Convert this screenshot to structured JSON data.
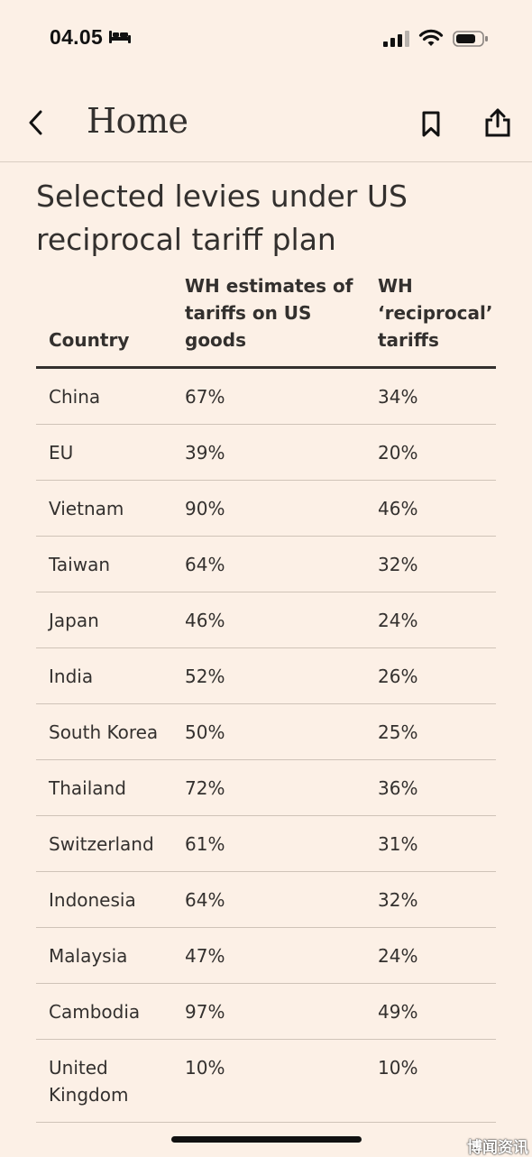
{
  "status_bar": {
    "time": "04.05",
    "icons": [
      "bed-icon",
      "cellular-signal-icon",
      "wifi-icon",
      "battery-icon"
    ]
  },
  "nav": {
    "title": "Home",
    "icons": [
      "back-chevron-icon",
      "bookmark-icon",
      "share-icon"
    ]
  },
  "article": {
    "headline": "Selected levies under US reciprocal tariff plan"
  },
  "table": {
    "headers": {
      "country": "Country",
      "wh_estimates": "WH estimates of tariffs on US goods",
      "reciprocal": "WH ‘reciprocal’ tariffs"
    },
    "rows": [
      {
        "country": "China",
        "wh_estimates": "67%",
        "reciprocal": "34%"
      },
      {
        "country": "EU",
        "wh_estimates": "39%",
        "reciprocal": "20%"
      },
      {
        "country": "Vietnam",
        "wh_estimates": "90%",
        "reciprocal": "46%"
      },
      {
        "country": "Taiwan",
        "wh_estimates": "64%",
        "reciprocal": "32%"
      },
      {
        "country": "Japan",
        "wh_estimates": "46%",
        "reciprocal": "24%"
      },
      {
        "country": "India",
        "wh_estimates": "52%",
        "reciprocal": "26%"
      },
      {
        "country": "South Korea",
        "wh_estimates": "50%",
        "reciprocal": "25%"
      },
      {
        "country": "Thailand",
        "wh_estimates": "72%",
        "reciprocal": "36%"
      },
      {
        "country": "Switzerland",
        "wh_estimates": "61%",
        "reciprocal": "31%"
      },
      {
        "country": "Indonesia",
        "wh_estimates": "64%",
        "reciprocal": "32%"
      },
      {
        "country": "Malaysia",
        "wh_estimates": "47%",
        "reciprocal": "24%"
      },
      {
        "country": "Cambodia",
        "wh_estimates": "97%",
        "reciprocal": "49%"
      },
      {
        "country": "United Kingdom",
        "wh_estimates": "10%",
        "reciprocal": "10%"
      }
    ]
  },
  "watermark": "博闻资讯",
  "colors": {
    "background": "#fcf0e6",
    "text": "#33302e",
    "rule": "#cfc3b8"
  }
}
